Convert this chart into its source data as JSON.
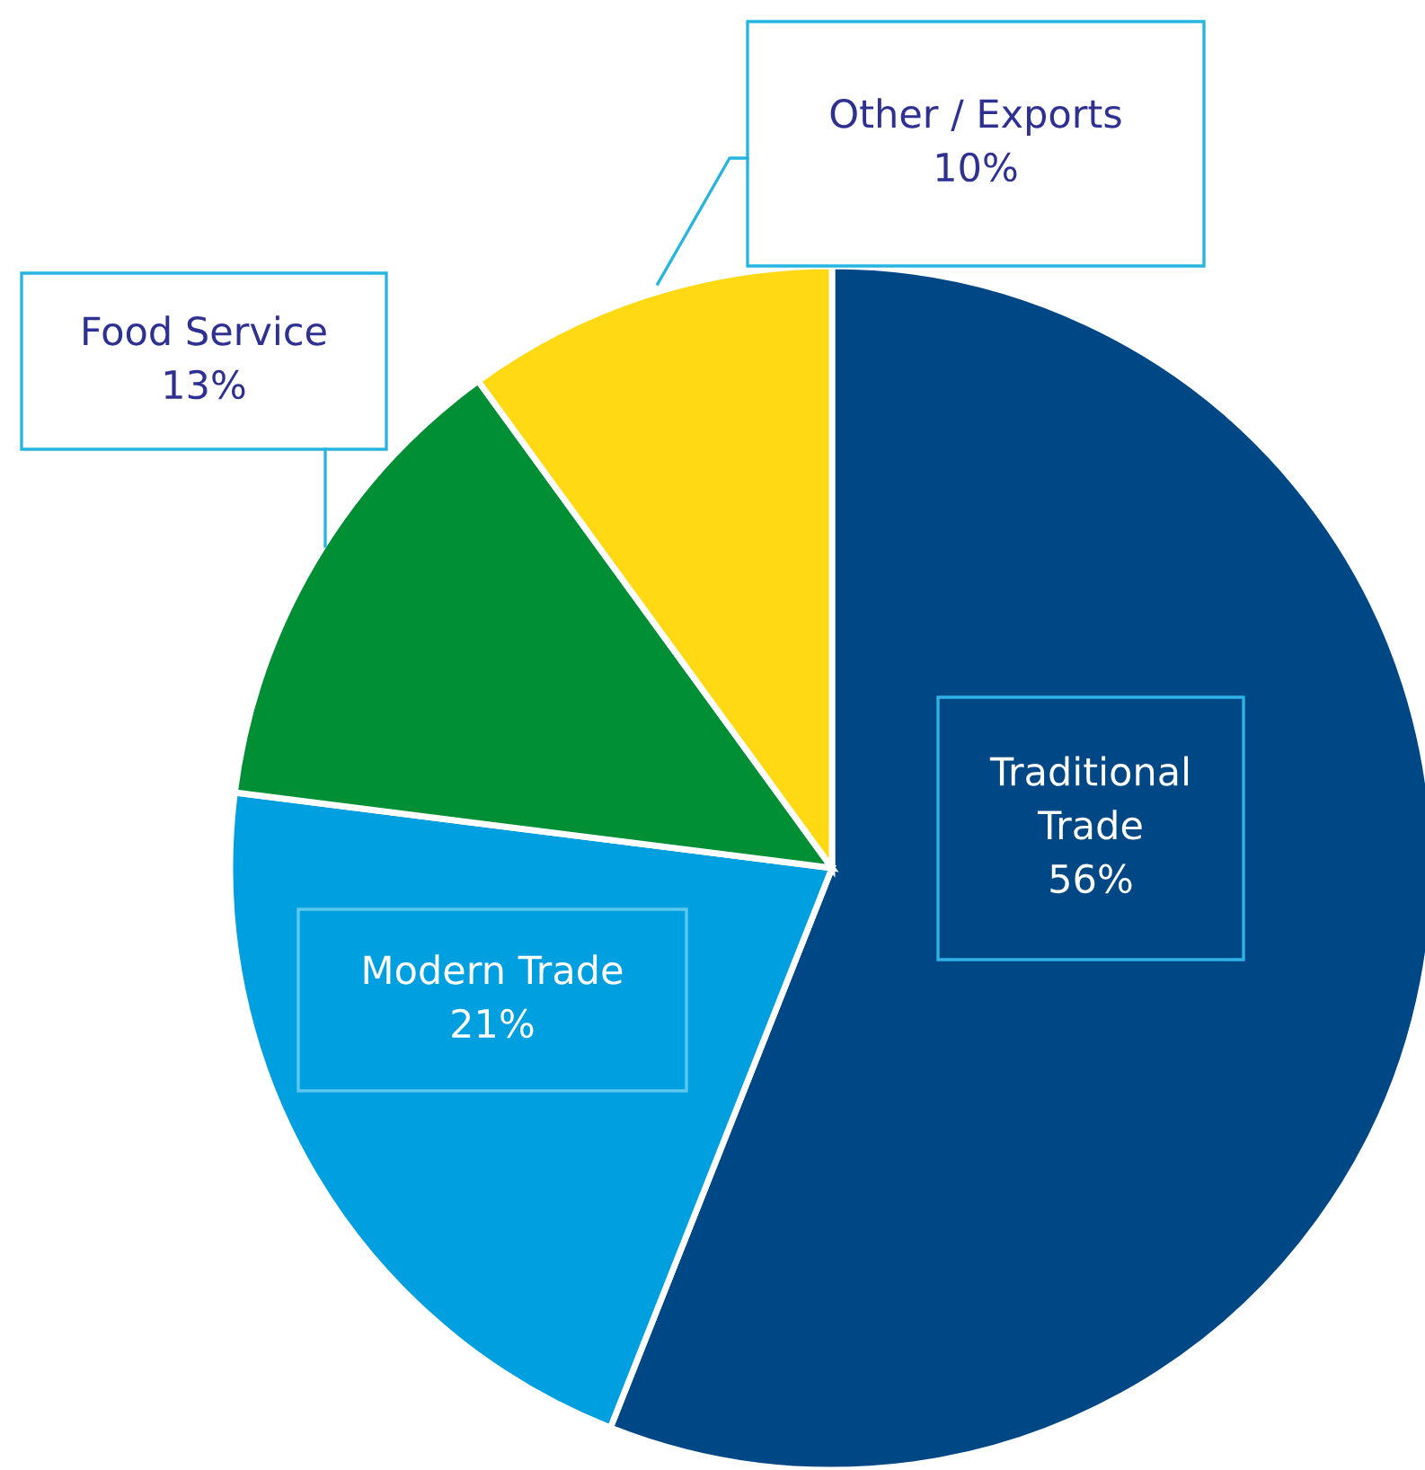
{
  "chart_data": {
    "type": "pie",
    "categories": [
      "Traditional Trade",
      "Modern Trade",
      "Food Service",
      "Other / Exports"
    ],
    "values": [
      56,
      21,
      13,
      10
    ],
    "value_labels": [
      "56%",
      "21%",
      "13%",
      "10%"
    ],
    "colors": [
      "#004785",
      "#009fe0",
      "#008f35",
      "#ffd914"
    ],
    "legend": false
  }
}
